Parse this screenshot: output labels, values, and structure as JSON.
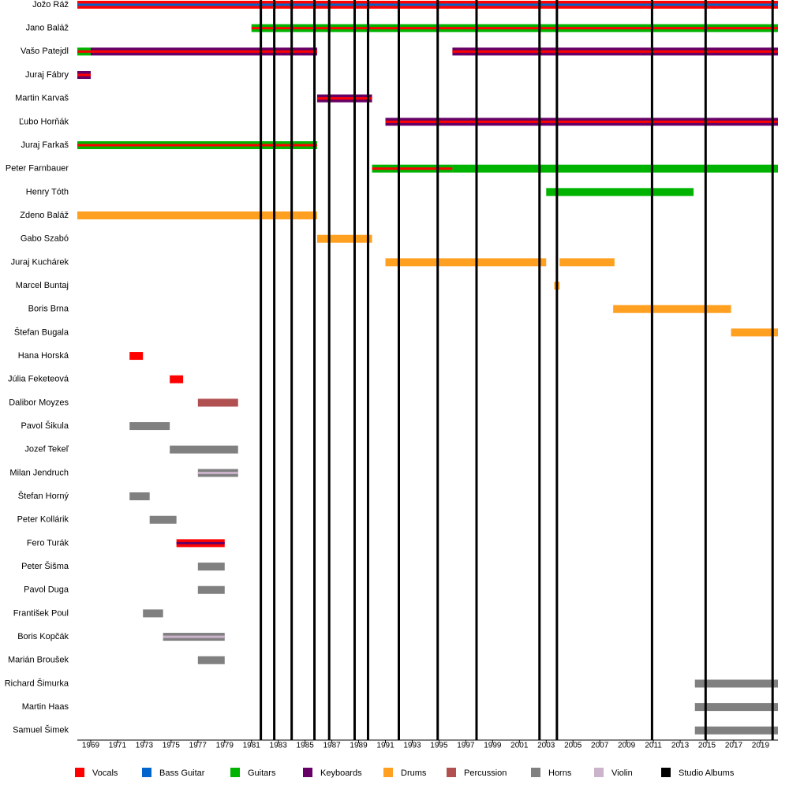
{
  "chart_data": {
    "type": "timeline",
    "xlim": [
      1968,
      2020.3
    ],
    "xticks": [
      1969,
      1971,
      1973,
      1975,
      1977,
      1979,
      1981,
      1983,
      1985,
      1987,
      1989,
      1991,
      1993,
      1995,
      1997,
      1999,
      2001,
      2003,
      2005,
      2007,
      2009,
      2011,
      2013,
      2015,
      2017,
      2019
    ],
    "legend": [
      {
        "name": "Vocals",
        "color": "#ff0000"
      },
      {
        "name": "Bass Guitar",
        "color": "#0066cc"
      },
      {
        "name": "Guitars",
        "color": "#00b300"
      },
      {
        "name": "Keyboards",
        "color": "#660066"
      },
      {
        "name": "Drums",
        "color": "#ffa020"
      },
      {
        "name": "Percussion",
        "color": "#b05050"
      },
      {
        "name": "Horns",
        "color": "#808080"
      },
      {
        "name": "Violin",
        "color": "#ccb3cc"
      },
      {
        "name": "Studio Albums",
        "color": "#000000"
      }
    ],
    "albums": [
      1981.7,
      1982.7,
      1984.0,
      1985.7,
      1986.8,
      1988.7,
      1989.7,
      1992.0,
      1994.9,
      1997.8,
      2002.5,
      2003.8,
      2010.9,
      2014.9,
      2019.9
    ],
    "members": [
      {
        "name": "Jožo Ráž",
        "bars": [
          {
            "start": 1968.0,
            "end": 2020.3,
            "roles": [
              "Vocals",
              "Bass Guitar"
            ]
          }
        ]
      },
      {
        "name": "Jano Baláž",
        "bars": [
          {
            "start": 1981.0,
            "end": 2020.3,
            "roles": [
              "Guitars",
              "Vocals"
            ]
          }
        ]
      },
      {
        "name": "Vašo Patejdl",
        "bars": [
          {
            "start": 1968.0,
            "end": 1969.0,
            "roles": [
              "Guitars",
              "Vocals"
            ]
          },
          {
            "start": 1969.0,
            "end": 1985.9,
            "roles": [
              "Keyboards",
              "Vocals"
            ]
          },
          {
            "start": 1996.0,
            "end": 2020.3,
            "roles": [
              "Keyboards",
              "Vocals"
            ]
          }
        ]
      },
      {
        "name": "Juraj Fábry",
        "bars": [
          {
            "start": 1968.0,
            "end": 1969.0,
            "roles": [
              "Keyboards",
              "Vocals"
            ]
          }
        ]
      },
      {
        "name": "Martin Karvaš",
        "bars": [
          {
            "start": 1985.9,
            "end": 1990.0,
            "roles": [
              "Keyboards",
              "Vocals"
            ]
          }
        ]
      },
      {
        "name": "Ľubo Horňák",
        "bars": [
          {
            "start": 1991.0,
            "end": 2020.3,
            "roles": [
              "Keyboards",
              "Vocals"
            ]
          }
        ]
      },
      {
        "name": "Juraj Farkaš",
        "bars": [
          {
            "start": 1968.0,
            "end": 1985.9,
            "roles": [
              "Guitars",
              "Vocals"
            ]
          }
        ]
      },
      {
        "name": "Peter Farnbauer",
        "bars": [
          {
            "start": 1990.0,
            "end": 1996.0,
            "roles": [
              "Guitars",
              "Vocals"
            ]
          },
          {
            "start": 1996.0,
            "end": 2020.3,
            "roles": [
              "Guitars"
            ]
          }
        ]
      },
      {
        "name": "Henry Tóth",
        "bars": [
          {
            "start": 2003.0,
            "end": 2014.0,
            "roles": [
              "Guitars"
            ]
          }
        ]
      },
      {
        "name": "Zdeno Baláž",
        "bars": [
          {
            "start": 1968.0,
            "end": 1985.9,
            "roles": [
              "Drums"
            ]
          }
        ]
      },
      {
        "name": "Gabo Szabó",
        "bars": [
          {
            "start": 1985.9,
            "end": 1990.0,
            "roles": [
              "Drums"
            ]
          }
        ]
      },
      {
        "name": "Juraj Kuchárek",
        "bars": [
          {
            "start": 1991.0,
            "end": 2003.0,
            "roles": [
              "Drums"
            ]
          },
          {
            "start": 2004.0,
            "end": 2008.1,
            "roles": [
              "Drums"
            ]
          }
        ]
      },
      {
        "name": "Marcel Buntaj",
        "bars": [
          {
            "start": 2003.6,
            "end": 2004.0,
            "roles": [
              "Drums"
            ]
          }
        ]
      },
      {
        "name": "Boris Brna",
        "bars": [
          {
            "start": 2008.0,
            "end": 2016.8,
            "roles": [
              "Drums"
            ]
          }
        ]
      },
      {
        "name": "Štefan Bugala",
        "bars": [
          {
            "start": 2016.8,
            "end": 2020.3,
            "roles": [
              "Drums"
            ]
          }
        ]
      },
      {
        "name": "Hana Horská",
        "bars": [
          {
            "start": 1971.9,
            "end": 1972.9,
            "roles": [
              "Vocals"
            ]
          }
        ]
      },
      {
        "name": "Júlia Feketeová",
        "bars": [
          {
            "start": 1974.9,
            "end": 1975.9,
            "roles": [
              "Vocals"
            ]
          }
        ]
      },
      {
        "name": "Dalibor Moyzes",
        "bars": [
          {
            "start": 1977.0,
            "end": 1980.0,
            "roles": [
              "Percussion"
            ]
          }
        ]
      },
      {
        "name": "Pavol Šikula",
        "bars": [
          {
            "start": 1971.9,
            "end": 1974.9,
            "roles": [
              "Horns"
            ]
          }
        ]
      },
      {
        "name": "Jozef Tekeľ",
        "bars": [
          {
            "start": 1974.9,
            "end": 1980.0,
            "roles": [
              "Horns"
            ]
          }
        ]
      },
      {
        "name": "Milan Jendruch",
        "bars": [
          {
            "start": 1977.0,
            "end": 1980.0,
            "roles": [
              "Horns",
              "Violin"
            ]
          }
        ]
      },
      {
        "name": "Štefan Horný",
        "bars": [
          {
            "start": 1971.9,
            "end": 1973.4,
            "roles": [
              "Horns"
            ]
          }
        ]
      },
      {
        "name": "Peter Kollárik",
        "bars": [
          {
            "start": 1973.4,
            "end": 1975.4,
            "roles": [
              "Horns"
            ]
          }
        ]
      },
      {
        "name": "Fero Turák",
        "bars": [
          {
            "start": 1975.4,
            "end": 1979.0,
            "roles": [
              "Vocals",
              "Keyboards"
            ]
          }
        ]
      },
      {
        "name": "Peter Šišma",
        "bars": [
          {
            "start": 1977.0,
            "end": 1979.0,
            "roles": [
              "Horns"
            ]
          }
        ]
      },
      {
        "name": "Pavol Duga",
        "bars": [
          {
            "start": 1977.0,
            "end": 1979.0,
            "roles": [
              "Horns"
            ]
          }
        ]
      },
      {
        "name": "František Poul",
        "bars": [
          {
            "start": 1972.9,
            "end": 1974.4,
            "roles": [
              "Horns"
            ]
          }
        ]
      },
      {
        "name": "Boris Kopčák",
        "bars": [
          {
            "start": 1974.4,
            "end": 1979.0,
            "roles": [
              "Horns",
              "Violin"
            ]
          }
        ]
      },
      {
        "name": "Marián Broušek",
        "bars": [
          {
            "start": 1977.0,
            "end": 1979.0,
            "roles": [
              "Horns"
            ]
          }
        ]
      },
      {
        "name": "Richard Šimurka",
        "bars": [
          {
            "start": 2014.1,
            "end": 2020.3,
            "roles": [
              "Horns"
            ]
          }
        ]
      },
      {
        "name": "Martin Haas",
        "bars": [
          {
            "start": 2014.1,
            "end": 2020.3,
            "roles": [
              "Horns"
            ]
          }
        ]
      },
      {
        "name": "Samuel Šimek",
        "bars": [
          {
            "start": 2014.1,
            "end": 2020.3,
            "roles": [
              "Horns"
            ]
          }
        ]
      }
    ]
  }
}
